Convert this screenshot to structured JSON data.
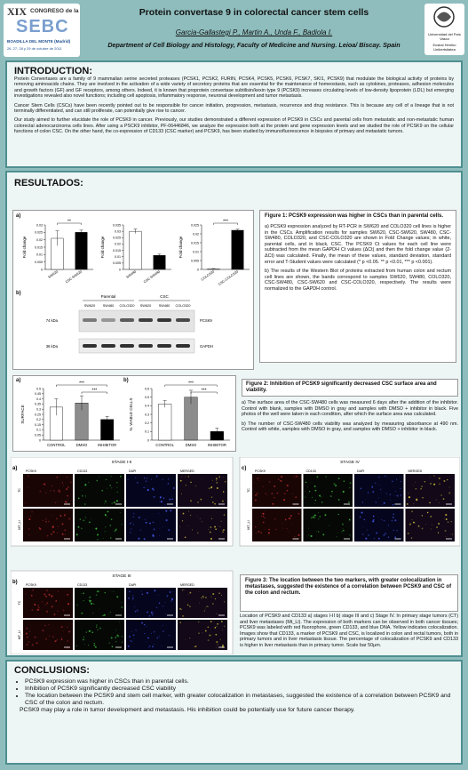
{
  "header": {
    "congress_number": "XIX",
    "congress_name": "CONGRESO de la",
    "congress_society": "SEBC",
    "congress_place": "BOADILLA DEL MONTE (Madrid)",
    "congress_dates": "26, 27, 28 y 29 de octubre de 2011",
    "title": "Protein convertase 9 in colorectal cancer stem cells",
    "authors": "Garcia-Gallastegi P., Martin A., Unda F., Badiola I.",
    "affiliation": "Department of Cell Biology and Histology, Faculty of Medicine and Nursing. Leioa/ Biscay. Spain",
    "university_1": "Universidad del País Vasco",
    "university_2": "Euskal Herriko Unibertsitatea"
  },
  "introduction": {
    "heading": "INTRODUCTION:",
    "paragraphs": [
      "Protein Convertases are a family of 9 mammalian serine secreted proteases (PCSK1, PCSK2, FURIN, PCSK4, PCSK5, PCSK6, PCSK7, SKI1, PCSK9) that modulate the biological activity of proteins by removing aminoacids chains. They are involved in the activation of a wide variety of secretory proteins that are essential for the maintenance of homeostasis, such as cytokines, proteases, adhesion molecules and growth factors (GF) and GF receptors, among others. Indeed, it is known that proprotein convertase subtilisin/kexin type 9 (PCSK9) increases circulating levels of low-density lipoprotein (LDL) but emerging investigations revealed also novel functions; including cell apoptosis, inflammatory response, neuronal development and tumor metastasis.",
      "Cancer Stem Cells (CSCs) have been recently pointed out to be responsible for cancer initiation, progression, metastasis, recurrence and drug resistance. This is because any cell of a lineage that is not terminally differentiated, and can still proliferate, can potentially give rise to cancer.",
      "Our study aimed to further elucidate the role of PCSK9 in cancer. Previously, our studies demonstrated a different expression of PCSK9 in CSCs and parental cells from metastatic and non-metastatic human colorectal adenocarcinoma cells lines. After using a PSCK9 inhibitor, PF-06446846, we analyze the expression both at the protein and gene expression levels and we studied the role of PCSK9 on the cellular functions of colon CSC. On the other hand, the co-expression of CD133 (CSC marker) and PCSK9, has been studied by immunofluorescence in biopsies of primary and metastatic tumors."
    ]
  },
  "results": {
    "heading": "RESULTADOS:",
    "figure1": {
      "panel_a": "a)",
      "panel_b": "b)",
      "charts": [
        {
          "type": "bar",
          "ylabel": "Fold change",
          "categories": [
            "SW620",
            "CSC-SW620"
          ],
          "values": [
            0.021,
            0.025
          ],
          "errors": [
            0.005,
            0.0015
          ],
          "colors": [
            "#ffffff",
            "#000000"
          ],
          "ylim": [
            0,
            0.03
          ],
          "yticks": [
            0,
            0.005,
            0.01,
            0.015,
            0.02,
            0.025,
            0.03
          ],
          "significance": [
            "**"
          ]
        },
        {
          "type": "bar",
          "ylabel": "Fold change",
          "categories": [
            "SW480",
            "CSC-SW480"
          ],
          "values": [
            0.03,
            0.011
          ],
          "errors": [
            0.0018,
            0.001
          ],
          "colors": [
            "#ffffff",
            "#000000"
          ],
          "ylim": [
            0,
            0.035
          ],
          "yticks": [
            0,
            0.005,
            0.01,
            0.015,
            0.02,
            0.025,
            0.03,
            0.035
          ],
          "significance": []
        },
        {
          "type": "bar",
          "ylabel": "Fold change",
          "categories": [
            "COLO320",
            "CSC-COLO320"
          ],
          "values": [
            0.0003,
            0.022
          ],
          "errors": [
            0.0002,
            0.0006
          ],
          "colors": [
            "#ffffff",
            "#000000"
          ],
          "ylim": [
            0,
            0.025
          ],
          "yticks": [
            0,
            0.005,
            0.01,
            0.015,
            0.02,
            0.025
          ],
          "significance": [
            "***"
          ]
        }
      ],
      "blot": {
        "parental": "Parental",
        "csc": "CSC",
        "lanes": [
          "SW620",
          "SW480",
          "COLO320",
          "SW620",
          "SW480",
          "COLO320"
        ],
        "markers": [
          "74 kDa",
          "36 kDa"
        ],
        "proteins": [
          "PCSK9",
          "GAPDH"
        ]
      },
      "caption": {
        "title": "Figure 1: PCSK9 expression was higher in CSCs than in parental cells.",
        "paragraphs": [
          "a) PCSK9 expression analyzed by RT-PCR in SW620 and COLO320 cell lines is higher in the CSCs. Amplification results for samples SW620, CSC-SW620, SW480, CSC-SW480, COLO320, and CSC-COLO320 are shown in Fold Change values; in white, parental cells, and in black, CSC. The PCSK9 Ct values for each cell line were subtracted from the mean GAPDH Ct values (ΔCt) and then the fold change value (2-ΔCt) was calculated. Finally, the mean of these values, standard deviation, standard error and T-Student values were calculated (* p <0.05. ** p <0.01, *** p <0.001).",
          "b) The results of the Western Blot of proteins extracted from human colon and rectum cell lines are shown, the bands correspond to samples SW620, SW480, COLO320, CSC-SW480, CSC-SW620 and CSC-COLO320, respectively. The results were normalized to the GAPDH control."
        ]
      }
    },
    "figure2": {
      "panel_a": "a)",
      "panel_b": "b)",
      "charts": [
        {
          "type": "bar",
          "ylabel": "SURFACE",
          "categories": [
            "CONTROL",
            "DMSO",
            "INHIBITOR"
          ],
          "values": [
            0.32,
            0.36,
            0.2
          ],
          "errors": [
            0.08,
            0.07,
            0.03
          ],
          "colors": [
            "#ffffff",
            "#8c8c8c",
            "#000000"
          ],
          "ylim": [
            0,
            0.5
          ],
          "yticks": [
            0,
            0.05,
            0.1,
            0.15,
            0.2,
            0.25,
            0.3,
            0.35,
            0.4,
            0.45,
            0.5
          ],
          "significance": [
            "***",
            "***"
          ]
        },
        {
          "type": "bar",
          "ylabel": "N. VIABLE CELLS",
          "categories": [
            "CONTROL",
            "DMSO",
            "INHIBITOR"
          ],
          "values": [
            0.42,
            0.5,
            0.1
          ],
          "errors": [
            0.04,
            0.08,
            0.04
          ],
          "colors": [
            "#ffffff",
            "#8c8c8c",
            "#000000"
          ],
          "ylim": [
            0,
            0.6
          ],
          "yticks": [
            0,
            0.1,
            0.2,
            0.3,
            0.4,
            0.5,
            0.6
          ],
          "significance": [
            "***",
            "***"
          ]
        }
      ],
      "caption": {
        "title": "Figure 2: Inhibition of PCSK9 significantly decreased CSC surface area and viability.",
        "paragraphs": [
          "a) The surface area of the CSC-SW480 cells was measured 6 days after the addition of the inhibitor. Control with blank, samples with DMSO in gray and samples with DMSO + inhibitor in black. Five photos of the well were taken in each condition, after which the surface area was calculated.",
          "b) The number of CSC-SW480 cells viability was analyzed by measuring absorbance at 490 nm. Control with white, samples with DMSO in gray, and samples with DMSO + inhibitor in black."
        ]
      }
    },
    "figure3": {
      "panels": [
        {
          "letter": "a)",
          "stage": "STAGE I-II",
          "columns": [
            "PCSK9",
            "CD133",
            "DAPI",
            "MERGED"
          ],
          "rows": [
            "TC",
            "MT_LI"
          ]
        },
        {
          "letter": "c)",
          "stage": "STAGE IV",
          "columns": [
            "PCSK9",
            "CD133",
            "DAPI",
            "MERGED"
          ],
          "rows": [
            "TC",
            "MT_LI"
          ]
        },
        {
          "letter": "b)",
          "stage": "STAGE III",
          "columns": [
            "PCSK9",
            "CD133",
            "DAPI",
            "MERGED"
          ],
          "rows": [
            "TC",
            "MT_LI"
          ]
        }
      ],
      "caption": {
        "title": "Figure 3: The location between the two markers, with greater colocalization in metastases, suggested the existence of a correlation between PCSK9 and CSC of the colon and rectum.",
        "text": "Location of PCSK9 and CD133 a) stages I-II b) stage III and c) Stage IV. In primary stage tumors (CT) and liver metastases (Mt_Li). The expression of both markers can be observed in both cancer tissues; PCSK9 was labeled with red fluorophore, green CD133, and blue DNA. Yellow indicates colocalization. Images show that CD133, a marker of PCSK9 and CSC, is localized in colon and rectal tumors, both in primary tumors and in liver metastasis tissue. The percentage of colocalization of PCSK9 and CD133 is higher in liver metastasis than in primary tumor. Scale bar 50µm."
      }
    }
  },
  "conclusions": {
    "heading": "CONCLUSIONS:",
    "bullets": [
      "PCSK9 expression was higher in CSCs than in parental cells.",
      "Inhibition of PCSK9 significantly decreased CSC viability",
      "The location between the PCSK9 and stem cell marker, with greater colocalization in metastases, suggested the existence of a correlation between PCSK9 and CSC of the colon and rectum."
    ],
    "closing": "PCSK9 may play a role in tumor development and metastasis. His inhibition could be potentially use for future cancer therapy."
  }
}
